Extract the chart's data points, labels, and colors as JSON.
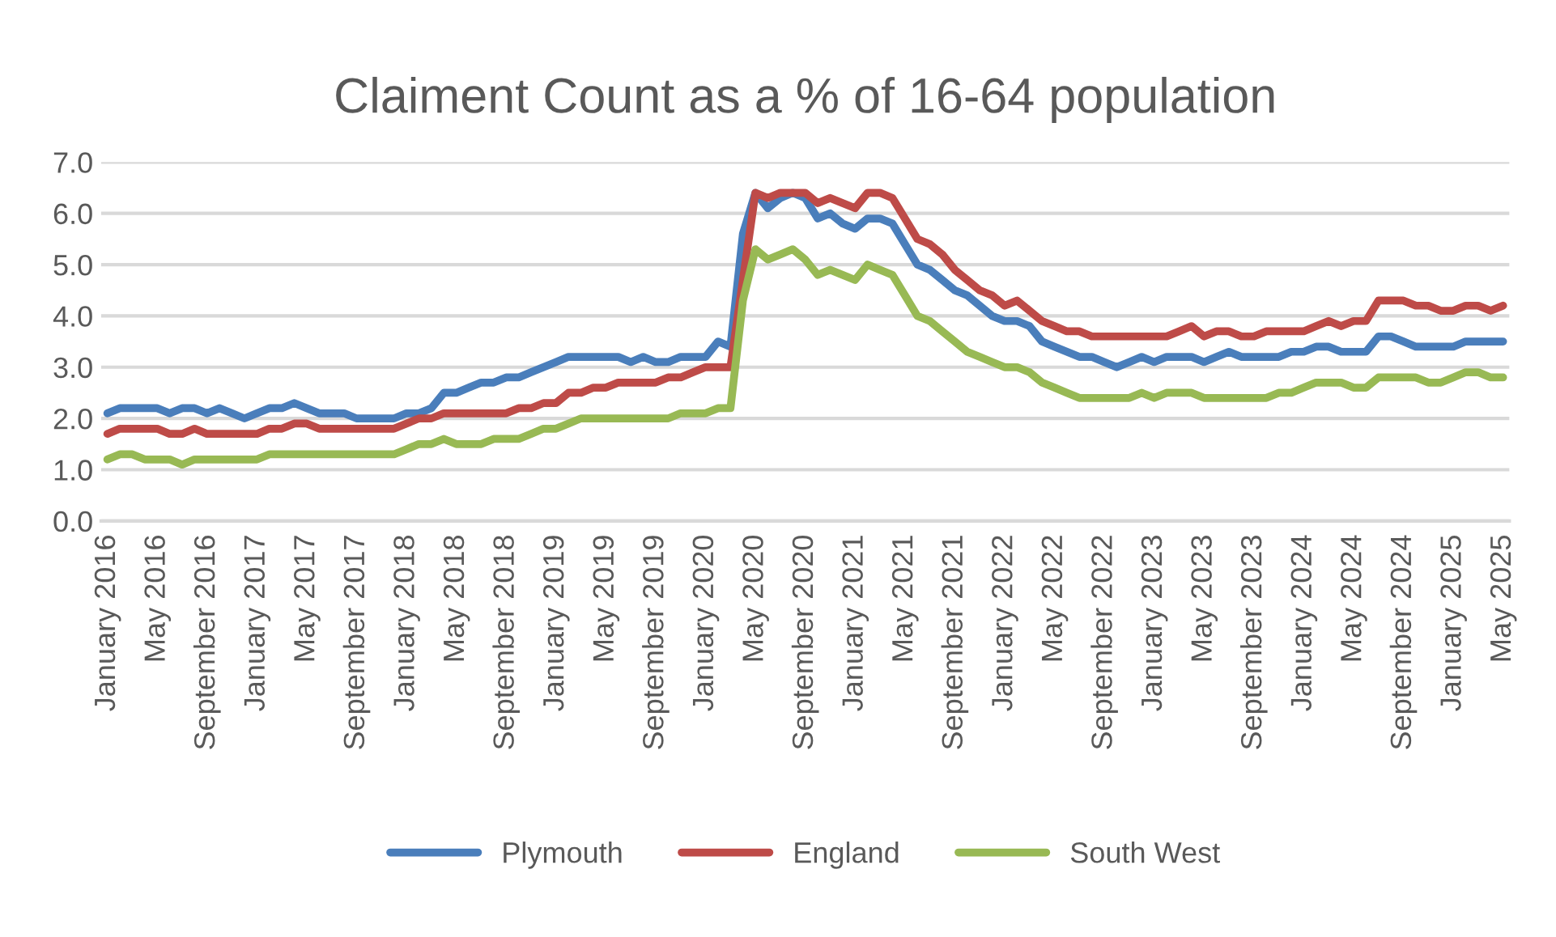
{
  "chart_data": {
    "type": "line",
    "title": "Claiment Count as a % of 16-64 population",
    "categories": [
      "January 2016",
      null,
      null,
      null,
      "May 2016",
      null,
      null,
      null,
      "September 2016",
      null,
      null,
      null,
      "January 2017",
      null,
      null,
      null,
      "May 2017",
      null,
      null,
      null,
      "September 2017",
      null,
      null,
      null,
      "January 2018",
      null,
      null,
      null,
      "May 2018",
      null,
      null,
      null,
      "September 2018",
      null,
      null,
      null,
      "January 2019",
      null,
      null,
      null,
      "May 2019",
      null,
      null,
      null,
      "September 2019",
      null,
      null,
      null,
      "January 2020",
      null,
      null,
      null,
      "May 2020",
      null,
      null,
      null,
      "September 2020",
      null,
      null,
      null,
      "January 2021",
      null,
      null,
      null,
      "May 2021",
      null,
      null,
      null,
      "September 2021",
      null,
      null,
      null,
      "January 2022",
      null,
      null,
      null,
      "May 2022",
      null,
      null,
      null,
      "September 2022",
      null,
      null,
      null,
      "January 2023",
      null,
      null,
      null,
      "May 2023",
      null,
      null,
      null,
      "September 2023",
      null,
      null,
      null,
      "January 2024",
      null,
      null,
      null,
      "May 2024",
      null,
      null,
      null,
      "September 2024",
      null,
      null,
      null,
      "January 2025",
      null,
      null,
      null,
      "May 2025"
    ],
    "series": [
      {
        "name": "Plymouth",
        "color": "#4a7ebb",
        "values": [
          2.1,
          2.2,
          2.2,
          2.2,
          2.2,
          2.1,
          2.2,
          2.2,
          2.1,
          2.2,
          2.1,
          2.0,
          2.1,
          2.2,
          2.2,
          2.3,
          2.2,
          2.1,
          2.1,
          2.1,
          2.0,
          2.0,
          2.0,
          2.0,
          2.1,
          2.1,
          2.2,
          2.5,
          2.5,
          2.6,
          2.7,
          2.7,
          2.8,
          2.8,
          2.9,
          3.0,
          3.1,
          3.2,
          3.2,
          3.2,
          3.2,
          3.2,
          3.1,
          3.2,
          3.1,
          3.1,
          3.2,
          3.2,
          3.2,
          3.5,
          3.4,
          5.6,
          6.4,
          6.1,
          6.3,
          6.4,
          6.3,
          5.9,
          6.0,
          5.8,
          5.7,
          5.9,
          5.9,
          5.8,
          5.4,
          5.0,
          4.9,
          4.7,
          4.5,
          4.4,
          4.2,
          4.0,
          3.9,
          3.9,
          3.8,
          3.5,
          3.4,
          3.3,
          3.2,
          3.2,
          3.1,
          3.0,
          3.1,
          3.2,
          3.1,
          3.2,
          3.2,
          3.2,
          3.1,
          3.2,
          3.3,
          3.2,
          3.2,
          3.2,
          3.2,
          3.3,
          3.3,
          3.4,
          3.4,
          3.3,
          3.3,
          3.3,
          3.6,
          3.6,
          3.5,
          3.4,
          3.4,
          3.4,
          3.4,
          3.5,
          3.5,
          3.5,
          3.5
        ]
      },
      {
        "name": "England",
        "color": "#be4b48",
        "values": [
          1.7,
          1.8,
          1.8,
          1.8,
          1.8,
          1.7,
          1.7,
          1.8,
          1.7,
          1.7,
          1.7,
          1.7,
          1.7,
          1.8,
          1.8,
          1.9,
          1.9,
          1.8,
          1.8,
          1.8,
          1.8,
          1.8,
          1.8,
          1.8,
          1.9,
          2.0,
          2.0,
          2.1,
          2.1,
          2.1,
          2.1,
          2.1,
          2.1,
          2.2,
          2.2,
          2.3,
          2.3,
          2.5,
          2.5,
          2.6,
          2.6,
          2.7,
          2.7,
          2.7,
          2.7,
          2.8,
          2.8,
          2.9,
          3.0,
          3.0,
          3.0,
          4.7,
          6.4,
          6.3,
          6.4,
          6.4,
          6.4,
          6.2,
          6.3,
          6.2,
          6.1,
          6.4,
          6.4,
          6.3,
          5.9,
          5.5,
          5.4,
          5.2,
          4.9,
          4.7,
          4.5,
          4.4,
          4.2,
          4.3,
          4.1,
          3.9,
          3.8,
          3.7,
          3.7,
          3.6,
          3.6,
          3.6,
          3.6,
          3.6,
          3.6,
          3.6,
          3.7,
          3.8,
          3.6,
          3.7,
          3.7,
          3.6,
          3.6,
          3.7,
          3.7,
          3.7,
          3.7,
          3.8,
          3.9,
          3.8,
          3.9,
          3.9,
          4.3,
          4.3,
          4.3,
          4.2,
          4.2,
          4.1,
          4.1,
          4.2,
          4.2,
          4.1,
          4.2
        ]
      },
      {
        "name": "South West",
        "color": "#98b954",
        "values": [
          1.2,
          1.3,
          1.3,
          1.2,
          1.2,
          1.2,
          1.1,
          1.2,
          1.2,
          1.2,
          1.2,
          1.2,
          1.2,
          1.3,
          1.3,
          1.3,
          1.3,
          1.3,
          1.3,
          1.3,
          1.3,
          1.3,
          1.3,
          1.3,
          1.4,
          1.5,
          1.5,
          1.6,
          1.5,
          1.5,
          1.5,
          1.6,
          1.6,
          1.6,
          1.7,
          1.8,
          1.8,
          1.9,
          2.0,
          2.0,
          2.0,
          2.0,
          2.0,
          2.0,
          2.0,
          2.0,
          2.1,
          2.1,
          2.1,
          2.2,
          2.2,
          4.3,
          5.3,
          5.1,
          5.2,
          5.3,
          5.1,
          4.8,
          4.9,
          4.8,
          4.7,
          5.0,
          4.9,
          4.8,
          4.4,
          4.0,
          3.9,
          3.7,
          3.5,
          3.3,
          3.2,
          3.1,
          3.0,
          3.0,
          2.9,
          2.7,
          2.6,
          2.5,
          2.4,
          2.4,
          2.4,
          2.4,
          2.4,
          2.5,
          2.4,
          2.5,
          2.5,
          2.5,
          2.4,
          2.4,
          2.4,
          2.4,
          2.4,
          2.4,
          2.5,
          2.5,
          2.6,
          2.7,
          2.7,
          2.7,
          2.6,
          2.6,
          2.8,
          2.8,
          2.8,
          2.8,
          2.7,
          2.7,
          2.8,
          2.9,
          2.9,
          2.8,
          2.8
        ]
      }
    ],
    "ylim": [
      0,
      7
    ],
    "yticks": [
      {
        "value": 0,
        "label": "0.0"
      },
      {
        "value": 1,
        "label": "1.0"
      },
      {
        "value": 2,
        "label": "2.0"
      },
      {
        "value": 3,
        "label": "3.0"
      },
      {
        "value": 4,
        "label": "4.0"
      },
      {
        "value": 5,
        "label": "5.0"
      },
      {
        "value": 6,
        "label": "6.0"
      },
      {
        "value": 7,
        "label": "7.0"
      }
    ],
    "grid": "y",
    "legend": "bottom",
    "marker": "none",
    "line_style": "solid"
  }
}
